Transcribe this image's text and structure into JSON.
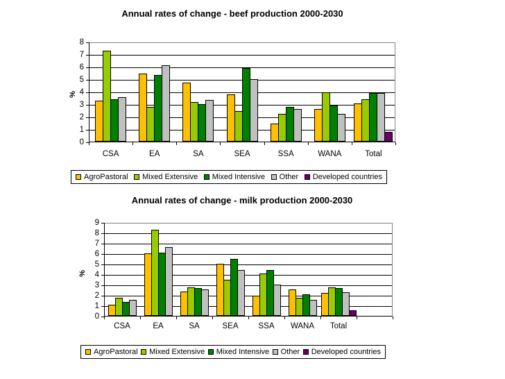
{
  "chart_data": [
    {
      "type": "bar",
      "title": "Annual rates of change - beef production 2000-2030",
      "ylabel": "%",
      "xlabel": "",
      "ylim": [
        0,
        8
      ],
      "yticks": [
        0,
        1,
        2,
        3,
        4,
        5,
        6,
        7,
        8
      ],
      "grid": true,
      "legend_position": "bottom",
      "categories": [
        "CSA",
        "EA",
        "SA",
        "SEA",
        "SSA",
        "WANA",
        "Total"
      ],
      "series": [
        {
          "name": "AgroPastoral",
          "color": "#FFC000",
          "values": [
            3.3,
            5.45,
            4.7,
            3.8,
            1.45,
            2.6,
            3.05
          ]
        },
        {
          "name": "Mixed Extensive",
          "color": "#99CC00",
          "values": [
            7.3,
            2.8,
            3.15,
            2.45,
            2.2,
            3.95,
            3.4
          ]
        },
        {
          "name": "Mixed Intensive",
          "color": "#008000",
          "values": [
            3.4,
            5.35,
            3.0,
            5.9,
            2.8,
            2.9,
            3.9
          ]
        },
        {
          "name": "Other",
          "color": "#C0C0C0",
          "values": [
            3.55,
            6.1,
            3.35,
            5.0,
            2.6,
            2.2,
            3.9
          ]
        },
        {
          "name": "Developed countries",
          "color": "#660066",
          "values": [
            null,
            null,
            null,
            null,
            null,
            null,
            0.8
          ]
        }
      ]
    },
    {
      "type": "bar",
      "title": "Annual rates of change - milk production 2000-2030",
      "ylabel": "%",
      "xlabel": "",
      "ylim": [
        0,
        9
      ],
      "yticks": [
        0,
        1,
        2,
        3,
        4,
        5,
        6,
        7,
        8,
        9
      ],
      "grid": true,
      "legend_position": "bottom",
      "categories": [
        "CSA",
        "EA",
        "SA",
        "SEA",
        "SSA",
        "WANA",
        "Total"
      ],
      "series": [
        {
          "name": "AgroPastoral",
          "color": "#FFC000",
          "values": [
            1.05,
            6.0,
            2.35,
            5.0,
            1.9,
            2.5,
            2.2
          ]
        },
        {
          "name": "Mixed Extensive",
          "color": "#99CC00",
          "values": [
            1.7,
            8.25,
            2.75,
            3.45,
            4.1,
            1.75,
            2.75
          ]
        },
        {
          "name": "Mixed Intensive",
          "color": "#008000",
          "values": [
            1.35,
            6.05,
            2.65,
            5.45,
            4.4,
            2.05,
            2.65
          ]
        },
        {
          "name": "Other",
          "color": "#C0C0C0",
          "values": [
            1.5,
            6.6,
            2.55,
            4.4,
            3.0,
            1.55,
            2.25
          ]
        },
        {
          "name": "Developed countries",
          "color": "#660066",
          "values": [
            null,
            null,
            null,
            null,
            null,
            null,
            0.5
          ]
        }
      ]
    }
  ]
}
